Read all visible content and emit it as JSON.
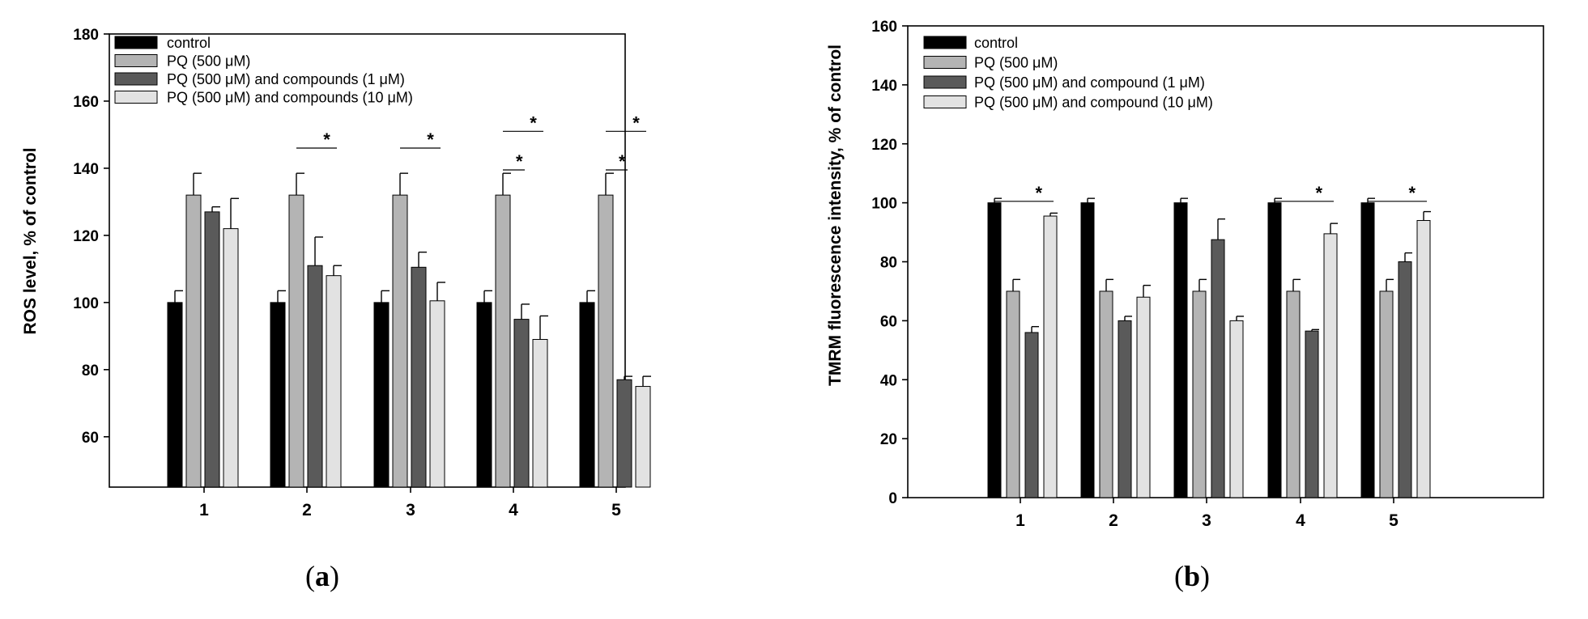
{
  "chart_data": [
    {
      "type": "bar",
      "panel_label": "a",
      "title": "",
      "xlabel": "",
      "ylabel": "ROS level, % of control",
      "ylim": [
        45,
        180
      ],
      "yticks": [
        60,
        80,
        100,
        120,
        140,
        160,
        180
      ],
      "categories": [
        "1",
        "2",
        "3",
        "4",
        "5"
      ],
      "legend": {
        "placement": "top-left"
      },
      "series": [
        {
          "name": "control",
          "color": "#000000",
          "values": [
            100,
            100,
            100,
            100,
            100
          ],
          "errors": [
            3.5,
            3.5,
            3.5,
            3.5,
            3.5
          ]
        },
        {
          "name": "PQ (500 μM)",
          "color": "#b4b4b4",
          "values": [
            132,
            132,
            132,
            132,
            132
          ],
          "errors": [
            6.5,
            6.5,
            6.5,
            6.5,
            6.5
          ]
        },
        {
          "name": "PQ (500 μM) and compounds (1 μM)",
          "color": "#5a5a5a",
          "values": [
            127,
            111,
            110.5,
            95,
            77
          ],
          "errors": [
            1.5,
            8.5,
            4.5,
            4.5,
            1
          ]
        },
        {
          "name": "PQ (500 μM) and compounds (10 μM)",
          "color": "#e2e2e2",
          "values": [
            122,
            108,
            100.5,
            89,
            75
          ],
          "errors": [
            9,
            3,
            5.5,
            7,
            3
          ]
        }
      ],
      "significance": [
        {
          "category": 2,
          "from_series": 1,
          "to_series": 3,
          "y": 146,
          "label": "*"
        },
        {
          "category": 3,
          "from_series": 1,
          "to_series": 3,
          "y": 146,
          "label": "*"
        },
        {
          "category": 4,
          "from_series": 1,
          "to_series": 3,
          "y": 151,
          "label": "*"
        },
        {
          "category": 4,
          "from_series": 1,
          "to_series": 2,
          "y": 139.5,
          "label": "*"
        },
        {
          "category": 5,
          "from_series": 1,
          "to_series": 3,
          "y": 151,
          "label": "*"
        },
        {
          "category": 5,
          "from_series": 1,
          "to_series": 2,
          "y": 139.5,
          "label": "*"
        }
      ]
    },
    {
      "type": "bar",
      "panel_label": "b",
      "title": "",
      "xlabel": "",
      "ylabel": "TMRM  fluorescence intensity, % of control",
      "ylim": [
        0,
        160
      ],
      "yticks": [
        0,
        20,
        40,
        60,
        80,
        100,
        120,
        140,
        160
      ],
      "categories": [
        "1",
        "2",
        "3",
        "4",
        "5"
      ],
      "legend": {
        "placement": "top-left"
      },
      "series": [
        {
          "name": "control",
          "color": "#000000",
          "values": [
            100,
            100,
            100,
            100,
            100
          ],
          "errors": [
            1.5,
            1.5,
            1.5,
            1.5,
            1.5
          ]
        },
        {
          "name": "PQ (500 μM)",
          "color": "#b4b4b4",
          "values": [
            70,
            70,
            70,
            70,
            70
          ],
          "errors": [
            4,
            4,
            4,
            4,
            4
          ]
        },
        {
          "name": "PQ (500 μM) and compound (1 μM)",
          "color": "#5a5a5a",
          "values": [
            56,
            60,
            87.5,
            56.5,
            80
          ],
          "errors": [
            2,
            1.5,
            7,
            0.5,
            3
          ]
        },
        {
          "name": "PQ (500 μM) and compound (10 μM)",
          "color": "#e2e2e2",
          "values": [
            95.5,
            68,
            60,
            89.5,
            94
          ],
          "errors": [
            1,
            4,
            1.5,
            3.5,
            3
          ]
        }
      ],
      "significance": [
        {
          "category": 1,
          "from_series": 0,
          "to_series": 3,
          "y": 100.5,
          "label": "*"
        },
        {
          "category": 4,
          "from_series": 0,
          "to_series": 3,
          "y": 100.5,
          "label": "*"
        },
        {
          "category": 5,
          "from_series": 0,
          "to_series": 3,
          "y": 100.5,
          "label": "*"
        }
      ]
    }
  ]
}
